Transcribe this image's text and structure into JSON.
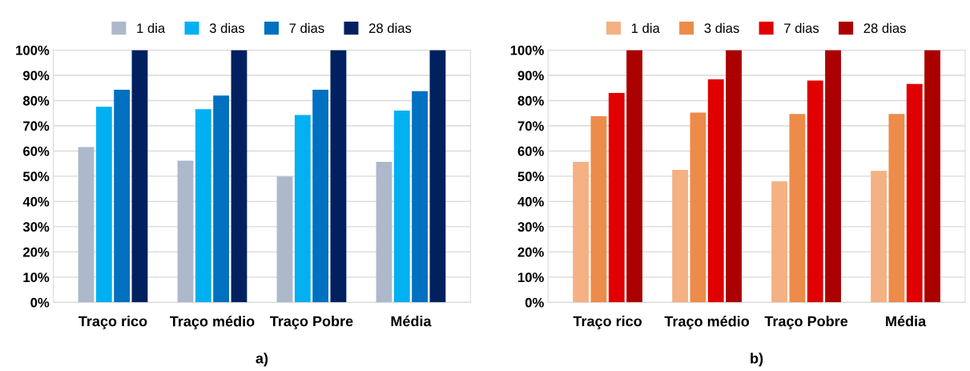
{
  "chart_data": [
    {
      "type": "bar",
      "categories": [
        "Traço rico",
        "Traço médio",
        "Traço Pobre",
        "Média"
      ],
      "series": [
        {
          "name": "1 dia",
          "color": "#adb9ca",
          "values": [
            61.6,
            56.2,
            49.9,
            55.7
          ]
        },
        {
          "name": "3 dias",
          "color": "#00b0f0",
          "values": [
            77.5,
            76.6,
            74.3,
            76.0
          ]
        },
        {
          "name": "7 dias",
          "color": "#0070c0",
          "values": [
            84.3,
            82.0,
            84.3,
            83.7
          ]
        },
        {
          "name": "28 dias",
          "color": "#002060",
          "values": [
            100,
            100,
            100,
            100
          ]
        }
      ],
      "ylim": [
        0,
        100
      ],
      "yticks": [
        {
          "value": 0,
          "label": "0%"
        },
        {
          "value": 10,
          "label": "10%"
        },
        {
          "value": 20,
          "label": "20%"
        },
        {
          "value": 30,
          "label": "30%"
        },
        {
          "value": 40,
          "label": "40%"
        },
        {
          "value": 50,
          "label": "50%"
        },
        {
          "value": 60,
          "label": "60%"
        },
        {
          "value": 70,
          "label": "70%"
        },
        {
          "value": 80,
          "label": "80%"
        },
        {
          "value": 90,
          "label": "90%"
        },
        {
          "value": 100,
          "label": "100%"
        }
      ],
      "grid": "y",
      "legend": "top",
      "annotations": [
        "a)"
      ]
    },
    {
      "type": "bar",
      "categories": [
        "Traço rico",
        "Traço médio",
        "Traço Pobre",
        "Média"
      ],
      "series": [
        {
          "name": "1 dia",
          "color": "#f4b183",
          "values": [
            55.7,
            52.5,
            48.0,
            52.1
          ]
        },
        {
          "name": "3 dias",
          "color": "#ed8b4a",
          "values": [
            73.8,
            75.2,
            74.7,
            74.7
          ]
        },
        {
          "name": "7 dias",
          "color": "#e00000",
          "values": [
            83.0,
            88.4,
            87.9,
            86.6
          ]
        },
        {
          "name": "28 dias",
          "color": "#ab0000",
          "values": [
            100,
            100,
            100,
            100
          ]
        }
      ],
      "ylim": [
        0,
        100
      ],
      "yticks": [
        {
          "value": 0,
          "label": "0%"
        },
        {
          "value": 10,
          "label": "10%"
        },
        {
          "value": 20,
          "label": "20%"
        },
        {
          "value": 30,
          "label": "30%"
        },
        {
          "value": 40,
          "label": "40%"
        },
        {
          "value": 50,
          "label": "50%"
        },
        {
          "value": 60,
          "label": "60%"
        },
        {
          "value": 70,
          "label": "70%"
        },
        {
          "value": 80,
          "label": "80%"
        },
        {
          "value": 90,
          "label": "90%"
        },
        {
          "value": 100,
          "label": "100%"
        }
      ],
      "grid": "y",
      "legend": "top",
      "annotations": [
        "b)"
      ]
    }
  ]
}
